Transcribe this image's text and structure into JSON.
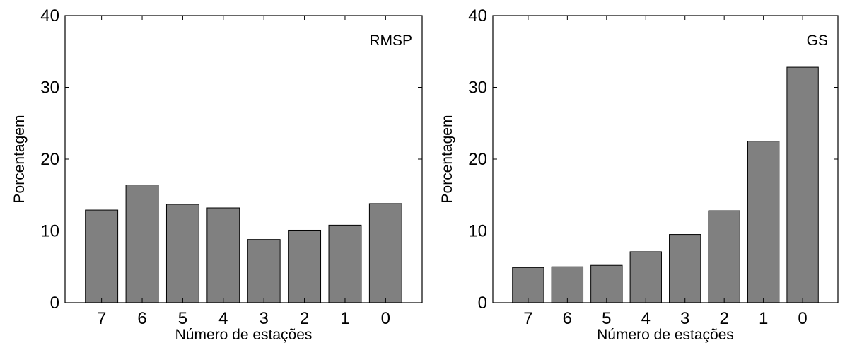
{
  "chart_data": [
    {
      "type": "bar",
      "annotation": "RMSP",
      "xlabel": "Número de estações",
      "ylabel": "Porcentagem",
      "categories": [
        "7",
        "6",
        "5",
        "4",
        "3",
        "2",
        "1",
        "0"
      ],
      "values": [
        12.9,
        16.4,
        13.7,
        13.2,
        8.8,
        10.1,
        10.8,
        13.8
      ],
      "ylim": [
        0,
        40
      ],
      "yticks": [
        0,
        10,
        20,
        30,
        40
      ],
      "xlim": [
        -0.9,
        7.9
      ],
      "bar_color": "#808080",
      "grid": false,
      "legend": "none"
    },
    {
      "type": "bar",
      "annotation": "GS",
      "xlabel": "Número de estações",
      "ylabel": "Porcentagem",
      "categories": [
        "7",
        "6",
        "5",
        "4",
        "3",
        "2",
        "1",
        "0"
      ],
      "values": [
        4.9,
        5.0,
        5.2,
        7.1,
        9.5,
        12.8,
        22.5,
        32.8
      ],
      "ylim": [
        0,
        40
      ],
      "yticks": [
        0,
        10,
        20,
        30,
        40
      ],
      "xlim": [
        -0.9,
        7.9
      ],
      "bar_color": "#808080",
      "grid": false,
      "legend": "none"
    }
  ]
}
